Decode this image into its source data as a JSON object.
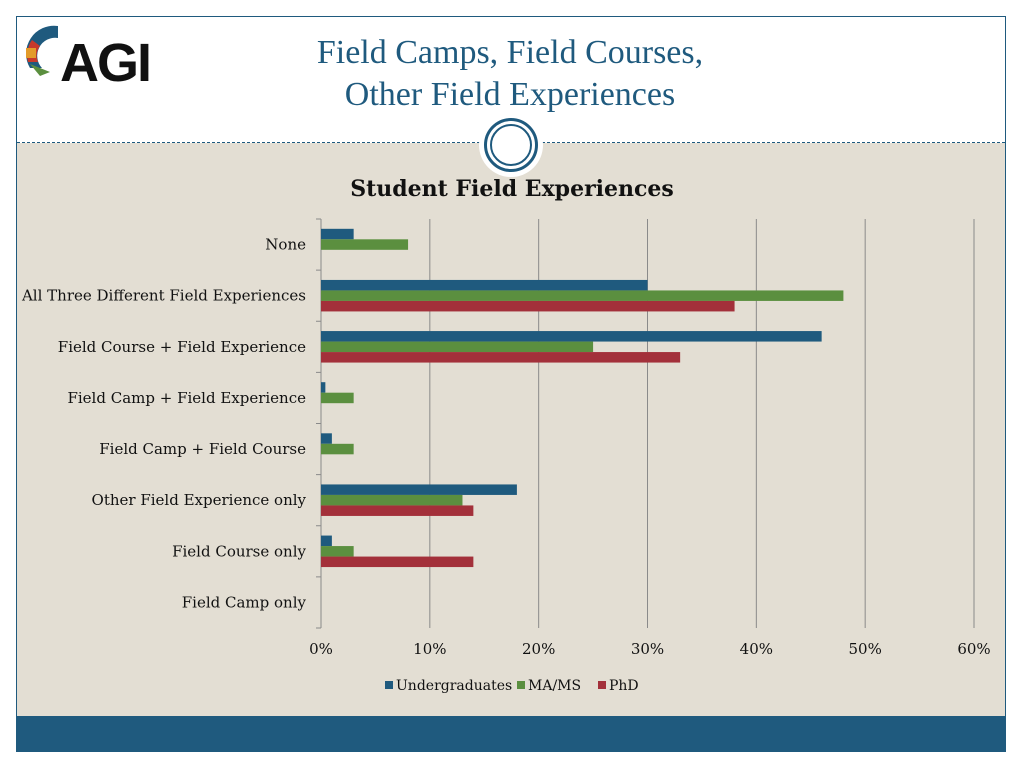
{
  "slide": {
    "title_line1": "Field Camps, Field Courses,",
    "title_line2": "Other Field Experiences",
    "logo_text": "AGI"
  },
  "colors": {
    "primary": "#1f5a7e",
    "content_bg": "#e3ded3",
    "undergrad": "#1f5a7e",
    "mams": "#5b8f3f",
    "phd": "#a3303a"
  },
  "chart_data": {
    "type": "bar",
    "orientation": "horizontal",
    "title": "Student Field Experiences",
    "categories": [
      "None",
      "All Three Different Field Experiences",
      "Field Course + Field Experience",
      "Field Camp + Field Experience",
      "Field Camp + Field Course",
      "Other Field Experience only",
      "Field Course only",
      "Field Camp only"
    ],
    "series": [
      {
        "name": "Undergraduates",
        "values": [
          3,
          30,
          46,
          0.4,
          1,
          18,
          1,
          0
        ]
      },
      {
        "name": "MA/MS",
        "values": [
          8,
          48,
          25,
          3,
          3,
          13,
          3,
          0
        ]
      },
      {
        "name": "PhD",
        "values": [
          0,
          38,
          33,
          0,
          0,
          14,
          14,
          0
        ]
      }
    ],
    "xlim": [
      0,
      60
    ],
    "xticks": [
      "0%",
      "10%",
      "20%",
      "30%",
      "40%",
      "50%",
      "60%"
    ],
    "grid": true,
    "legend": "bottom"
  }
}
